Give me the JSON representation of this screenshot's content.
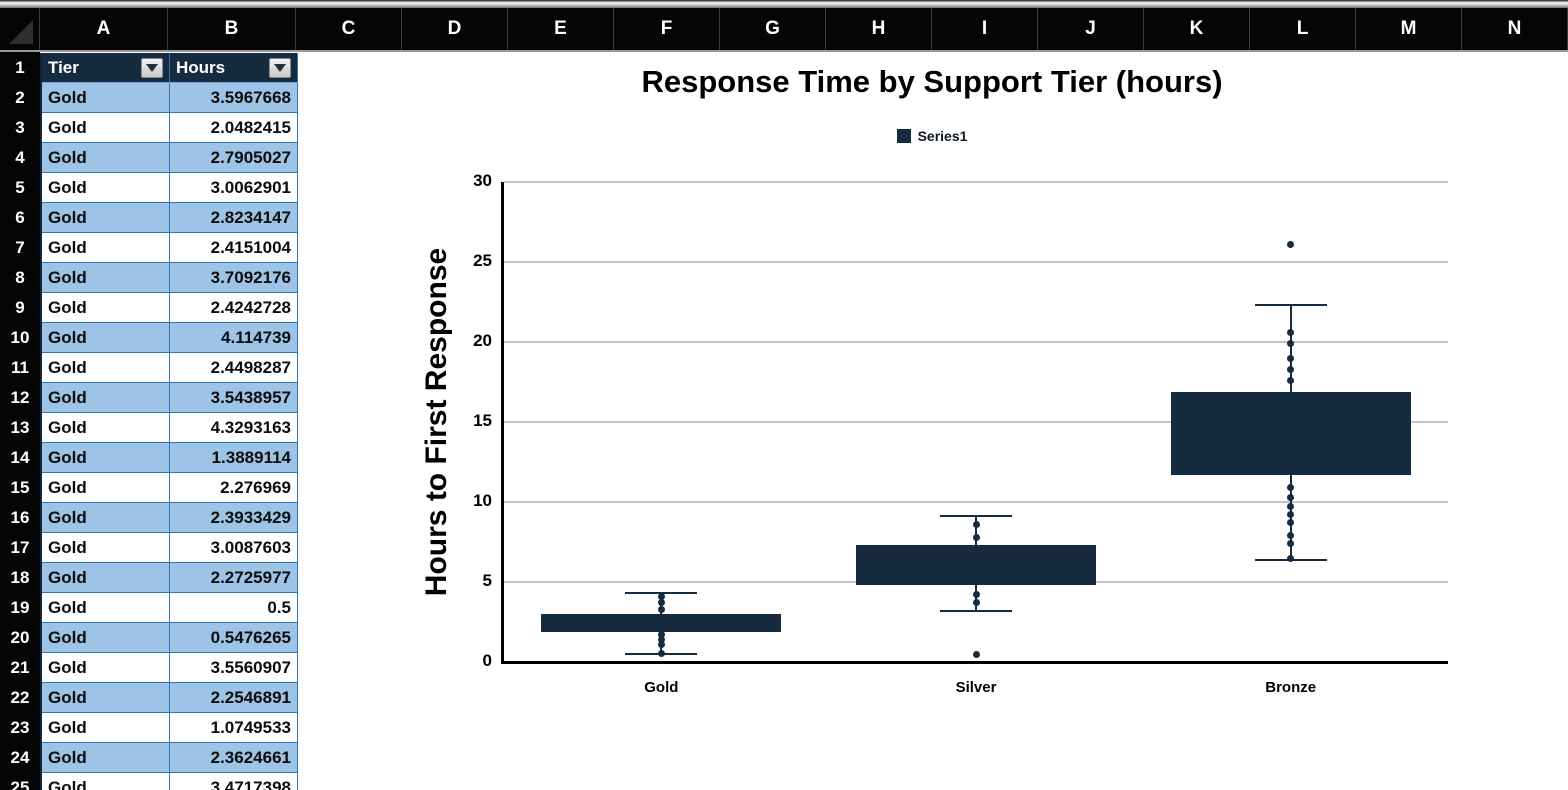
{
  "sheet": {
    "column_letters": [
      "A",
      "B",
      "C",
      "D",
      "E",
      "F",
      "G",
      "H",
      "I",
      "J",
      "K",
      "L",
      "M",
      "N"
    ],
    "table": {
      "header_row_number": "1",
      "columns": [
        {
          "label": "Tier",
          "filter_icon": "filter-dropdown"
        },
        {
          "label": "Hours",
          "filter_icon": "filter-dropdown"
        }
      ],
      "rows": [
        {
          "row": "2",
          "tier": "Gold",
          "hours": "3.5967668"
        },
        {
          "row": "3",
          "tier": "Gold",
          "hours": "2.0482415"
        },
        {
          "row": "4",
          "tier": "Gold",
          "hours": "2.7905027"
        },
        {
          "row": "5",
          "tier": "Gold",
          "hours": "3.0062901"
        },
        {
          "row": "6",
          "tier": "Gold",
          "hours": "2.8234147"
        },
        {
          "row": "7",
          "tier": "Gold",
          "hours": "2.4151004"
        },
        {
          "row": "8",
          "tier": "Gold",
          "hours": "3.7092176"
        },
        {
          "row": "9",
          "tier": "Gold",
          "hours": "2.4242728"
        },
        {
          "row": "10",
          "tier": "Gold",
          "hours": "4.114739"
        },
        {
          "row": "11",
          "tier": "Gold",
          "hours": "2.4498287"
        },
        {
          "row": "12",
          "tier": "Gold",
          "hours": "3.5438957"
        },
        {
          "row": "13",
          "tier": "Gold",
          "hours": "4.3293163"
        },
        {
          "row": "14",
          "tier": "Gold",
          "hours": "1.3889114"
        },
        {
          "row": "15",
          "tier": "Gold",
          "hours": "2.276969"
        },
        {
          "row": "16",
          "tier": "Gold",
          "hours": "2.3933429"
        },
        {
          "row": "17",
          "tier": "Gold",
          "hours": "3.0087603"
        },
        {
          "row": "18",
          "tier": "Gold",
          "hours": "2.2725977"
        },
        {
          "row": "19",
          "tier": "Gold",
          "hours": "0.5"
        },
        {
          "row": "20",
          "tier": "Gold",
          "hours": "0.5476265"
        },
        {
          "row": "21",
          "tier": "Gold",
          "hours": "3.5560907"
        },
        {
          "row": "22",
          "tier": "Gold",
          "hours": "2.2546891"
        },
        {
          "row": "23",
          "tier": "Gold",
          "hours": "1.0749533"
        },
        {
          "row": "24",
          "tier": "Gold",
          "hours": "2.3624661"
        },
        {
          "row": "25",
          "tier": "Gold",
          "hours": "3.4717398"
        }
      ]
    },
    "colors": {
      "band_blue": "#9dc3e6",
      "border_blue": "#2e75b6",
      "header_navy": "#162a40"
    }
  },
  "chart_data": {
    "type": "box",
    "title": "Response Time by Support Tier (hours)",
    "legend": [
      {
        "label": "Series1"
      }
    ],
    "ylabel": "Hours to First Response",
    "xlabel": "",
    "ylim": [
      0,
      30
    ],
    "yticks": [
      0,
      5,
      10,
      15,
      20,
      25,
      30
    ],
    "grid": "horizontal",
    "legend_position": "top-center",
    "categories": [
      "Gold",
      "Silver",
      "Bronze"
    ],
    "series": [
      {
        "name": "Gold",
        "whisker_low": 0.5,
        "q1": 1.9,
        "q3": 3.0,
        "whisker_high": 4.3,
        "points": [
          4.1,
          3.7,
          3.3,
          1.7,
          1.4,
          1.1,
          0.55
        ],
        "outliers": []
      },
      {
        "name": "Silver",
        "whisker_low": 3.2,
        "q1": 4.8,
        "q3": 7.3,
        "whisker_high": 9.1,
        "points": [
          8.6,
          7.8,
          4.2,
          3.7
        ],
        "outliers": [
          0.45
        ]
      },
      {
        "name": "Bronze",
        "whisker_low": 6.4,
        "q1": 11.7,
        "q3": 16.9,
        "whisker_high": 22.3,
        "points": [
          20.6,
          19.9,
          19.0,
          18.3,
          17.6,
          10.9,
          10.3,
          9.7,
          9.2,
          8.7,
          7.9,
          7.4,
          6.5
        ],
        "outliers": [
          26.1
        ]
      }
    ],
    "colors": {
      "box": "#162a40",
      "gridline": "#c3c3c3",
      "axis": "#000000"
    }
  }
}
